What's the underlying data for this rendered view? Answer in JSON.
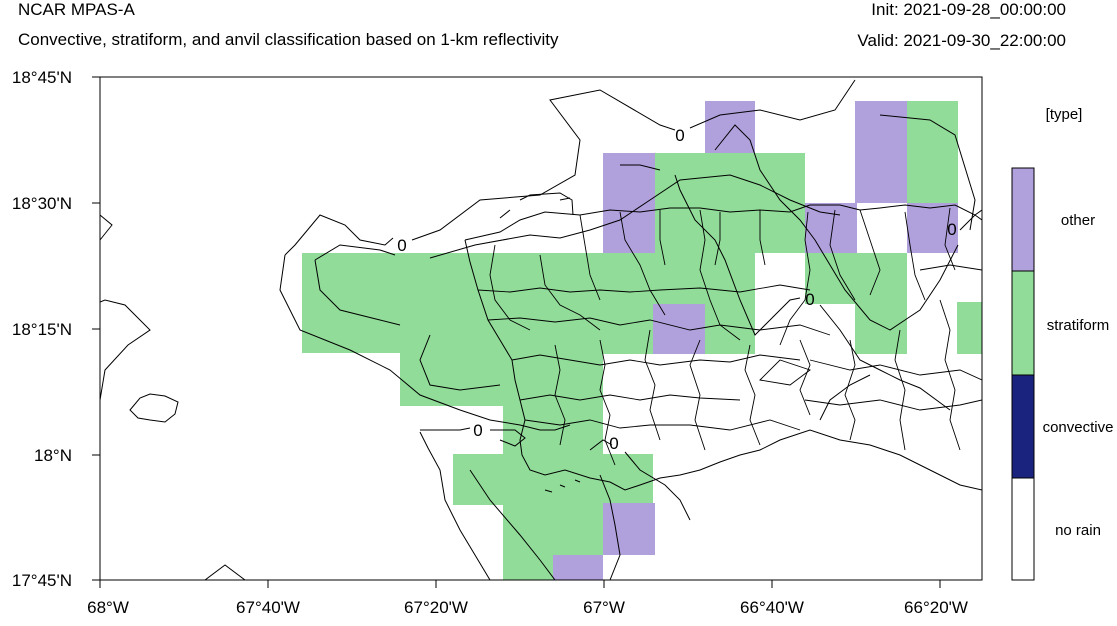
{
  "header": {
    "model": "NCAR MPAS-A",
    "subtitle": "Convective, stratiform, and anvil classification based on 1-km reflectivity",
    "init": "Init: 2021-09-28_00:00:00",
    "valid": "Valid: 2021-09-30_22:00:00"
  },
  "map": {
    "lat_labels": [
      "18°45'N",
      "18°30'N",
      "18°15'N",
      "18°N",
      "17°45'N"
    ],
    "lon_labels": [
      "68°W",
      "67°40'W",
      "67°20'W",
      "67°W",
      "66°40'W",
      "66°20'W"
    ],
    "contour_label": "0"
  },
  "legend": {
    "title": "[type]",
    "items": [
      {
        "label": "other",
        "color": "#b0a0dc"
      },
      {
        "label": "stratiform",
        "color": "#90dc98"
      },
      {
        "label": "convective",
        "color": "#1a237e"
      },
      {
        "label": "no rain",
        "color": "#ffffff"
      }
    ]
  },
  "colors": {
    "other": "#b0a0dc",
    "stratiform": "#90dc98"
  }
}
